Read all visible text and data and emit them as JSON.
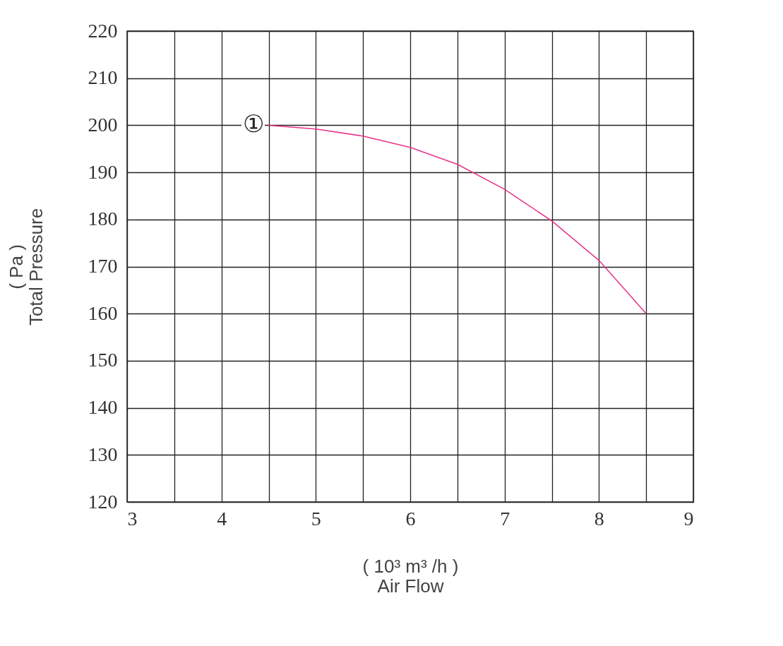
{
  "chart_data": {
    "type": "line",
    "xlabel": "( 10³ m³ /h )\nAir Flow",
    "ylabel": "( Pa )\nTotal Pressure",
    "x": [
      4.5,
      5,
      5.5,
      6,
      6.5,
      7,
      7.5,
      8,
      8.5
    ],
    "series": [
      {
        "color": "#e8338a",
        "values": [
          200,
          199.2,
          197.7,
          195.3,
          191.7,
          186.4,
          179.7,
          171.3,
          160
        ]
      }
    ],
    "xlim": [
      3,
      9
    ],
    "xticks": [
      3,
      {
        "value": 3.5,
        "label": null
      },
      4,
      {
        "value": 4.5,
        "label": null
      },
      5,
      {
        "value": 5.5,
        "label": null
      },
      6,
      {
        "value": 6.5,
        "label": null
      },
      7,
      {
        "value": 7.5,
        "label": null
      },
      8,
      {
        "value": 8.5,
        "label": null
      },
      9
    ],
    "ylim": [
      120,
      220
    ],
    "yticks": [
      120,
      130,
      140,
      150,
      160,
      170,
      180,
      190,
      200,
      210,
      220
    ],
    "annotations": [
      {
        "text": "①",
        "x": 4.5,
        "y": 200
      }
    ],
    "grid": true,
    "legend": false,
    "marker": "none",
    "line_style": "solid"
  }
}
